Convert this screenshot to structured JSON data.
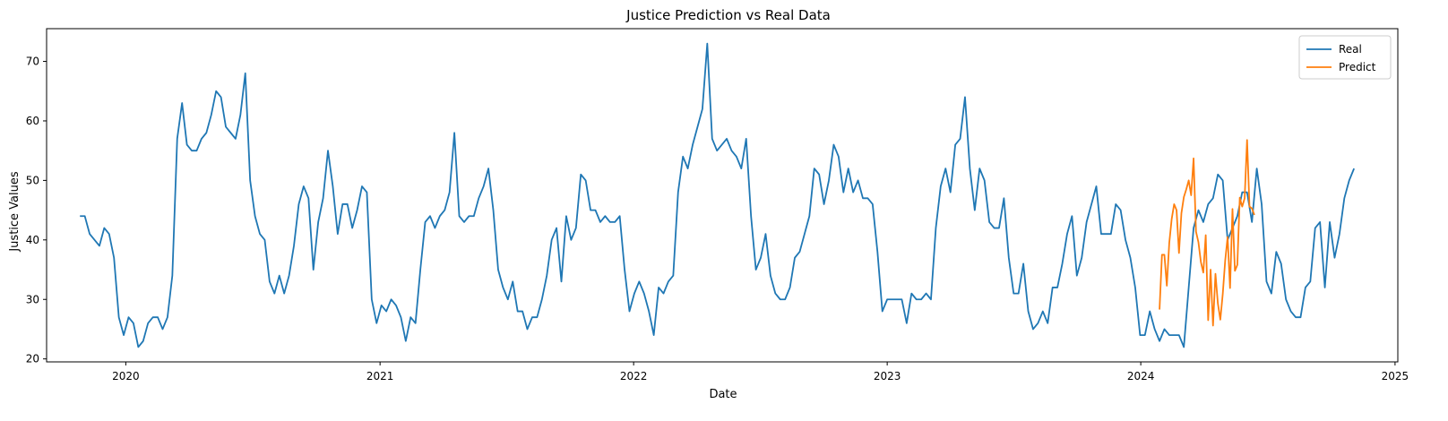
{
  "chart_data": {
    "type": "line",
    "title": "Justice Prediction vs Real Data",
    "xlabel": "Date",
    "ylabel": "Justice Values",
    "xlim": [
      "2019-09-09",
      "2025-01-05"
    ],
    "ylim": [
      19.5,
      75.5
    ],
    "x_ticks": [
      "2020-01-01",
      "2021-01-01",
      "2022-01-01",
      "2023-01-01",
      "2024-01-01",
      "2025-01-01"
    ],
    "x_tick_labels": [
      "2020",
      "2021",
      "2022",
      "2023",
      "2024",
      "2025"
    ],
    "y_ticks": [
      20,
      30,
      40,
      50,
      60,
      70
    ],
    "grid": false,
    "legend": "top-right",
    "series": [
      {
        "name": "Real",
        "color": "#1f77b4",
        "start": "2019-10-27",
        "interval_days": 7,
        "values": [
          44,
          44,
          41,
          40,
          39,
          42,
          41,
          37,
          27,
          24,
          27,
          26,
          22,
          23,
          26,
          27,
          27,
          25,
          27,
          34,
          57,
          63,
          56,
          55,
          55,
          57,
          58,
          61,
          65,
          64,
          59,
          58,
          57,
          61,
          68,
          50,
          44,
          41,
          40,
          33,
          31,
          34,
          31,
          34,
          39,
          46,
          49,
          47,
          35,
          43,
          47,
          55,
          49,
          41,
          46,
          46,
          42,
          45,
          49,
          48,
          30,
          26,
          29,
          28,
          30,
          29,
          27,
          23,
          27,
          26,
          35,
          43,
          44,
          42,
          44,
          45,
          48,
          58,
          44,
          43,
          44,
          44,
          47,
          49,
          52,
          45,
          35,
          32,
          30,
          33,
          28,
          28,
          25,
          27,
          27,
          30,
          34,
          40,
          42,
          33,
          44,
          40,
          42,
          51,
          50,
          45,
          45,
          43,
          44,
          43,
          43,
          44,
          35,
          28,
          31,
          33,
          31,
          28,
          24,
          32,
          31,
          33,
          34,
          48,
          54,
          52,
          56,
          59,
          62,
          73,
          57,
          55,
          56,
          57,
          55,
          54,
          52,
          57,
          44,
          35,
          37,
          41,
          34,
          31,
          30,
          30,
          32,
          37,
          38,
          41,
          44,
          52,
          51,
          46,
          50,
          56,
          54,
          48,
          52,
          48,
          50,
          47,
          47,
          46,
          38,
          28,
          30,
          30,
          30,
          30,
          26,
          31,
          30,
          30,
          31,
          30,
          42,
          49,
          52,
          48,
          56,
          57,
          64,
          52,
          45,
          52,
          50,
          43,
          42,
          42,
          47,
          37,
          31,
          31,
          36,
          28,
          25,
          26,
          28,
          26,
          32,
          32,
          36,
          41,
          44,
          34,
          37,
          43,
          46,
          49,
          41,
          41,
          41,
          46,
          45,
          40,
          37,
          32,
          24,
          24,
          28,
          25,
          23,
          25,
          24,
          24,
          24,
          22,
          32,
          42,
          45,
          43,
          46,
          47,
          51,
          50,
          40,
          42,
          44,
          48,
          48,
          43,
          52,
          46,
          33,
          31,
          38,
          36,
          30,
          28,
          27,
          27,
          32,
          33,
          42,
          43,
          32,
          43,
          37,
          41,
          47,
          50,
          52
        ]
      },
      {
        "name": "Predict",
        "color": "#ff7f0e",
        "start": "2024-01-28",
        "interval_days": 3.5,
        "values": [
          28.3,
          37.5,
          37.5,
          32.3,
          39.5,
          43.5,
          46.0,
          45.0,
          37.8,
          44.5,
          47.2,
          48.5,
          50.0,
          47.5,
          53.7,
          41.4,
          39.6,
          36.3,
          34.5,
          40.8,
          26.5,
          35.0,
          25.6,
          34.3,
          29.3,
          26.6,
          30.9,
          36.5,
          40.5,
          31.9,
          45.2,
          34.8,
          35.8,
          47.1,
          45.6,
          47.0,
          56.8,
          45.6,
          45.3,
          44.2
        ]
      }
    ]
  }
}
